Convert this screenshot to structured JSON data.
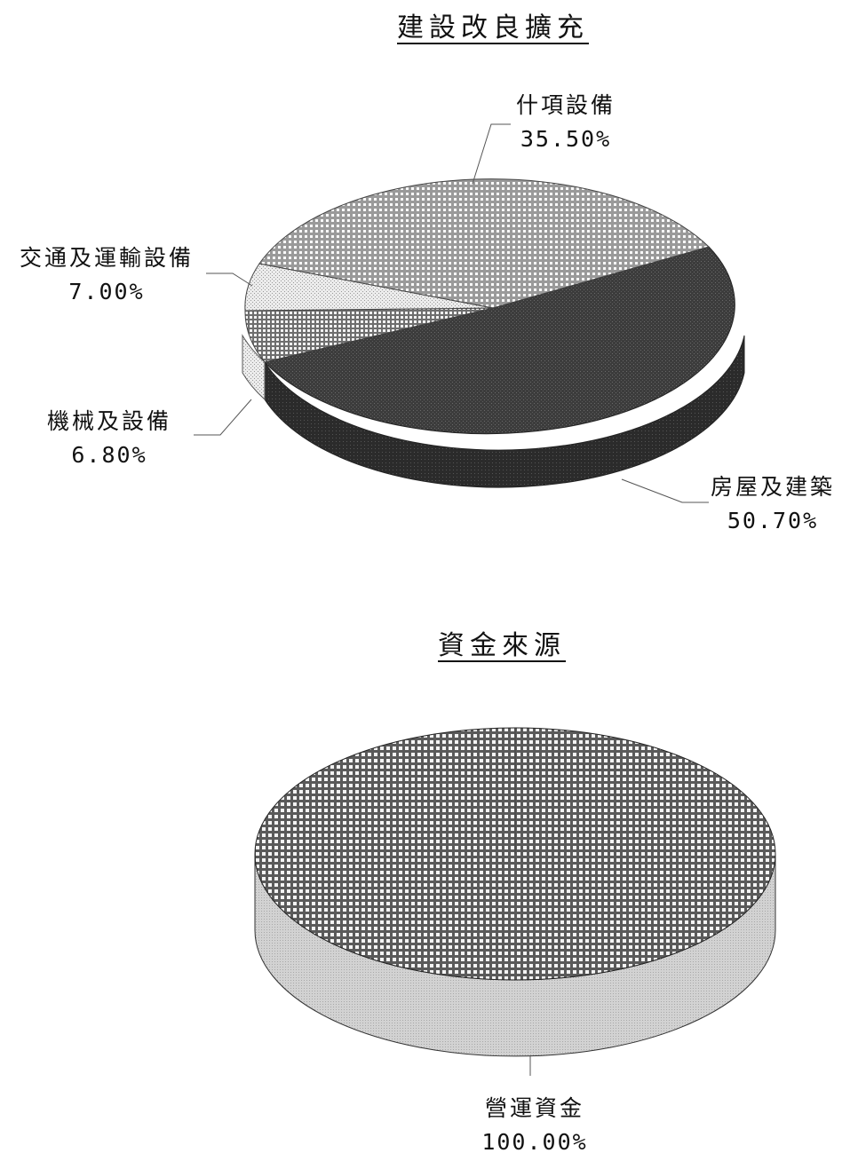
{
  "charts_meta": {
    "top_title": "建設改良擴充",
    "bottom_title": "資金來源"
  },
  "labels": {
    "equipment_name": "什項設備",
    "equipment_pct": "35.50%",
    "transport_name": "交通及運輸設備",
    "transport_pct": "7.00%",
    "machinery_name": "機械及設備",
    "machinery_pct": "6.80%",
    "buildings_name": "房屋及建築",
    "buildings_pct": "50.70%",
    "funds_name": "營運資金",
    "funds_pct": "100.00%"
  },
  "colors": {
    "buildings": "#3a3a3a",
    "equipment": "#b8b8b8",
    "transport": "#e9e9e9",
    "machinery": "#8d8d8d",
    "funds": "#8a8a8a",
    "funds_side": "#c8c8c8",
    "leader": "#555555"
  },
  "chart_data": [
    {
      "type": "pie",
      "title": "建設改良擴充",
      "three_d": true,
      "slices": [
        {
          "label": "房屋及建築",
          "value": 50.7
        },
        {
          "label": "機械及設備",
          "value": 6.8
        },
        {
          "label": "交通及運輸設備",
          "value": 7.0
        },
        {
          "label": "什項設備",
          "value": 35.5
        }
      ]
    },
    {
      "type": "pie",
      "title": "資金來源",
      "three_d": true,
      "slices": [
        {
          "label": "營運資金",
          "value": 100.0
        }
      ]
    }
  ]
}
